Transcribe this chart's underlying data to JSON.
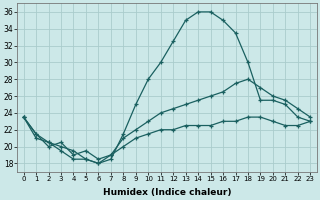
{
  "xlabel": "Humidex (Indice chaleur)",
  "bg_color": "#cce8e8",
  "grid_color": "#aacccc",
  "line_color": "#1a6060",
  "xlim": [
    -0.5,
    23.5
  ],
  "ylim": [
    17,
    37
  ],
  "xticks": [
    0,
    1,
    2,
    3,
    4,
    5,
    6,
    7,
    8,
    9,
    10,
    11,
    12,
    13,
    14,
    15,
    16,
    17,
    18,
    19,
    20,
    21,
    22,
    23
  ],
  "yticks": [
    18,
    20,
    22,
    24,
    26,
    28,
    30,
    32,
    34,
    36
  ],
  "curve1_x": [
    0,
    1,
    2,
    3,
    4,
    5,
    6,
    7,
    8,
    9,
    10,
    11,
    12,
    13,
    14,
    15,
    16,
    17,
    18,
    19,
    20,
    21,
    22,
    23
  ],
  "curve1_y": [
    23.5,
    21.5,
    20.5,
    20.0,
    19.5,
    18.5,
    18.0,
    18.5,
    21.5,
    25.0,
    28.0,
    30.0,
    32.5,
    35.0,
    36.0,
    36.0,
    35.0,
    33.5,
    30.0,
    25.5,
    25.5,
    25.0,
    23.5,
    23.0
  ],
  "curve2_x": [
    0,
    1,
    2,
    3,
    4,
    5,
    6,
    7,
    8,
    9,
    10,
    11,
    12,
    13,
    14,
    15,
    16,
    17,
    18,
    19,
    20,
    21,
    22,
    23
  ],
  "curve2_y": [
    23.5,
    21.5,
    20.0,
    20.5,
    19.0,
    19.5,
    18.5,
    19.0,
    21.0,
    22.0,
    23.0,
    24.0,
    24.5,
    25.0,
    25.5,
    26.0,
    26.5,
    27.5,
    28.0,
    27.0,
    26.0,
    25.5,
    24.5,
    23.5
  ],
  "curve3_x": [
    0,
    1,
    2,
    3,
    4,
    5,
    6,
    7,
    8,
    9,
    10,
    11,
    12,
    13,
    14,
    15,
    16,
    17,
    18,
    19,
    20,
    21,
    22,
    23
  ],
  "curve3_y": [
    23.5,
    21.0,
    20.5,
    19.5,
    18.5,
    18.5,
    18.0,
    19.0,
    20.0,
    21.0,
    21.5,
    22.0,
    22.0,
    22.5,
    22.5,
    22.5,
    23.0,
    23.0,
    23.5,
    23.5,
    23.0,
    22.5,
    22.5,
    23.0
  ],
  "marker": "+"
}
